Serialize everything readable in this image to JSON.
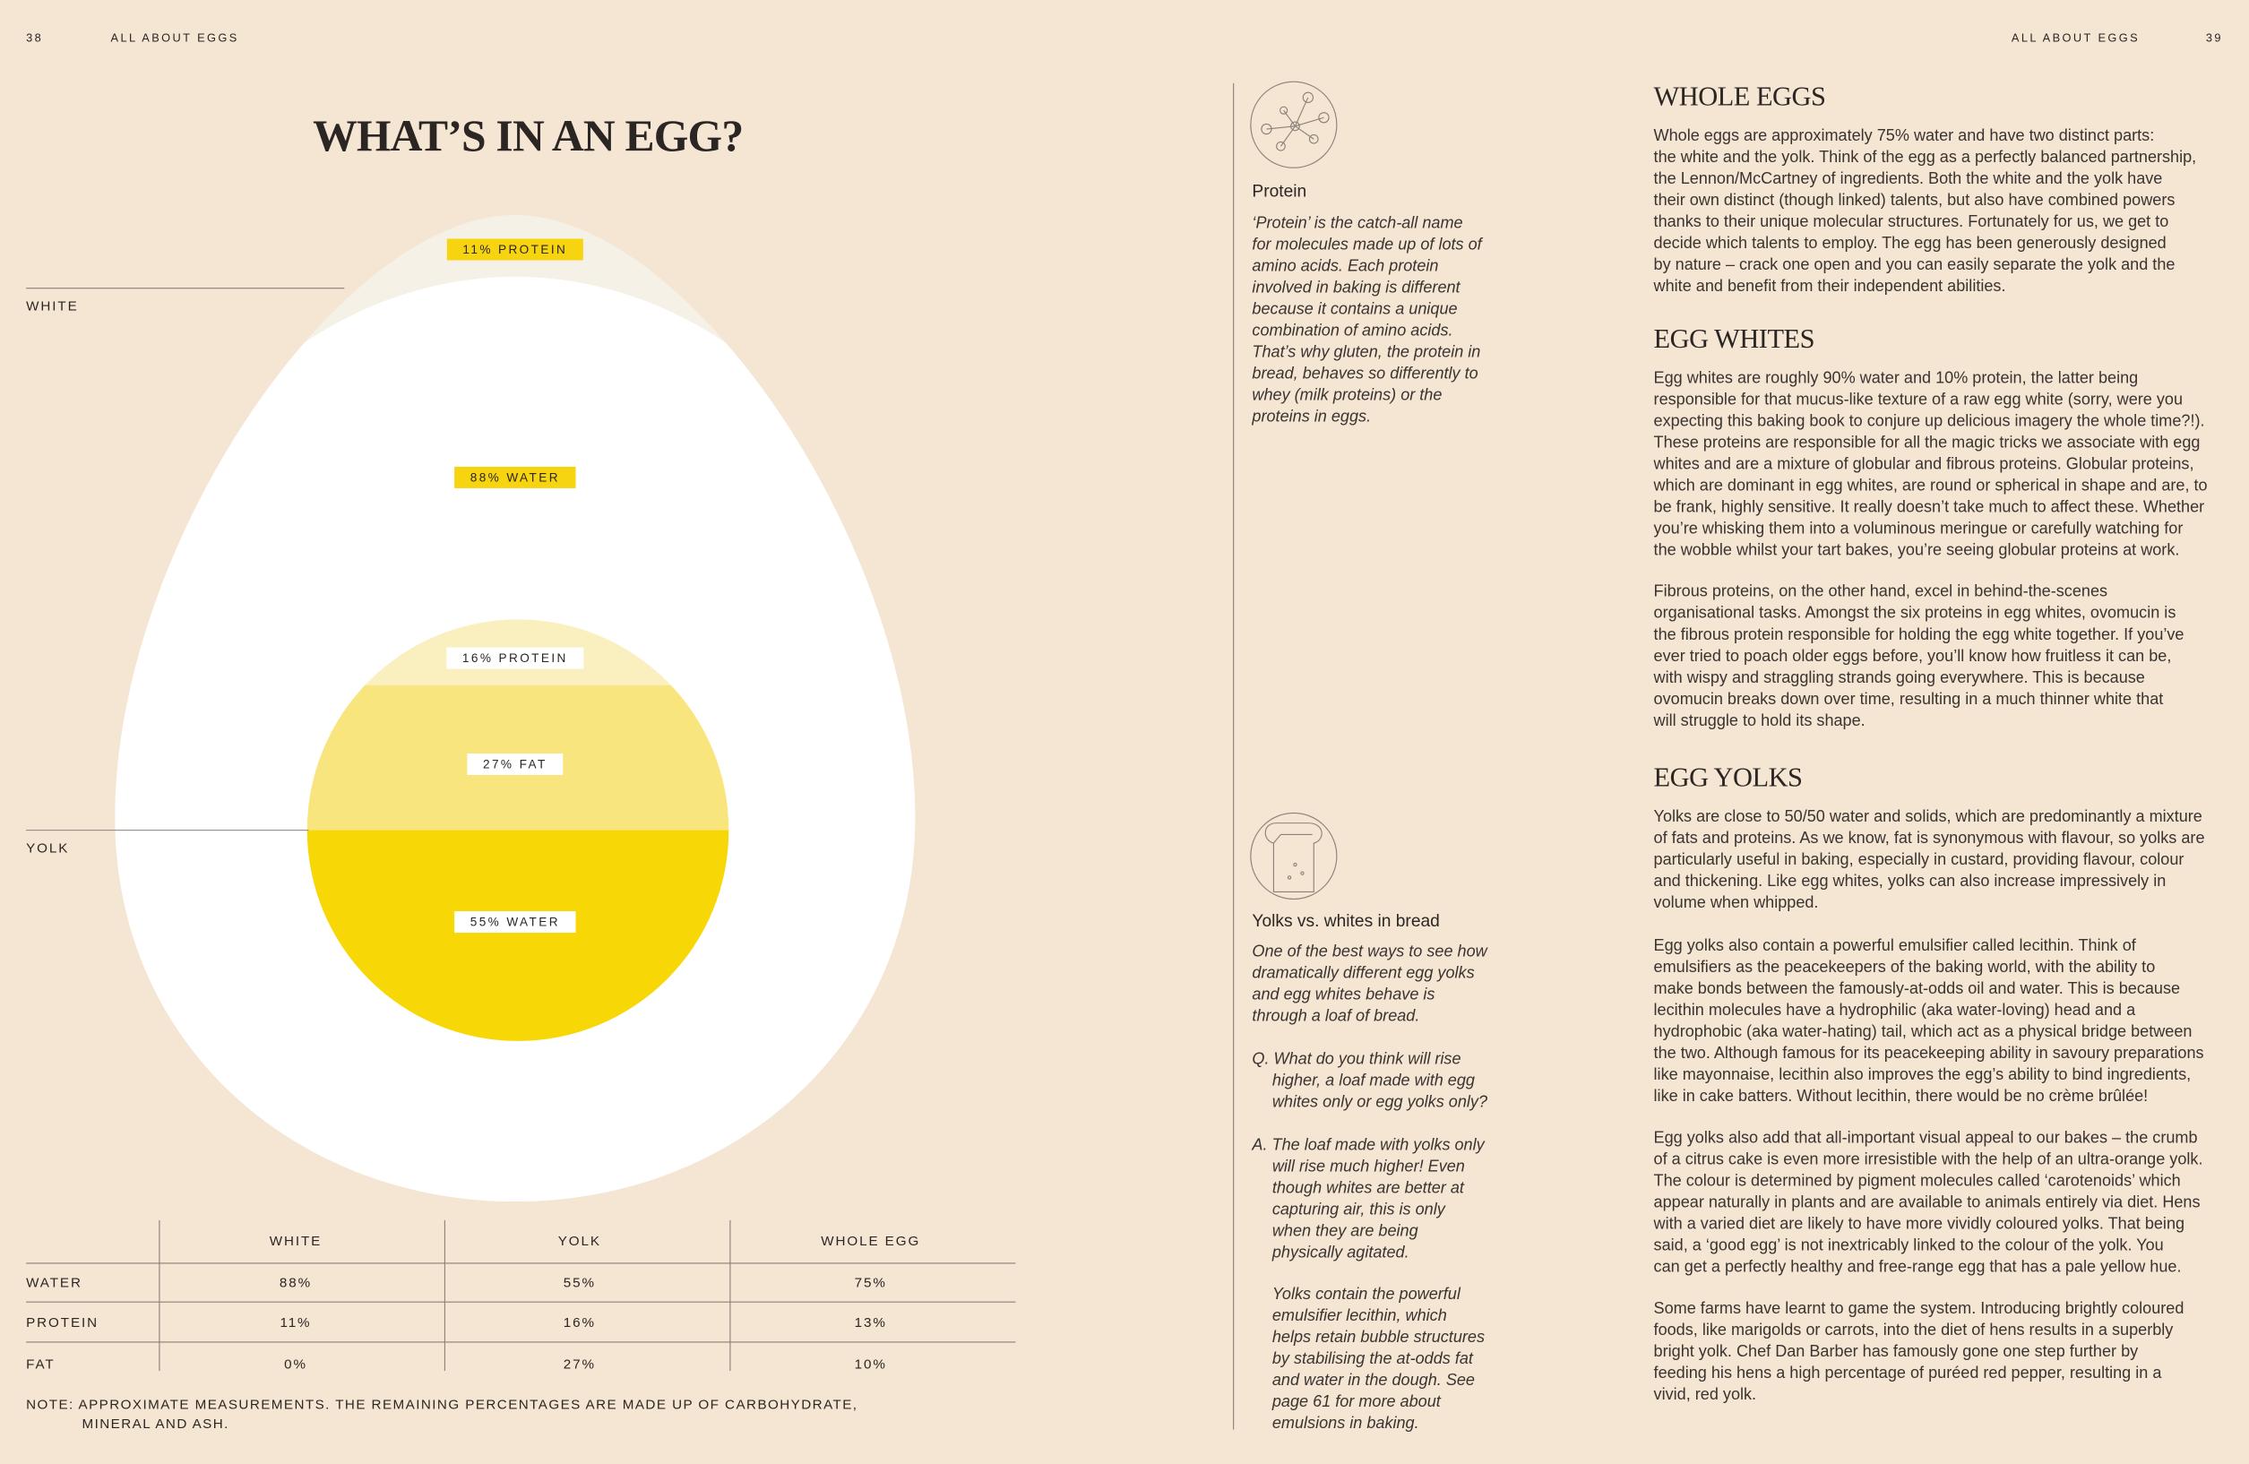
{
  "header": {
    "left": {
      "page": "38",
      "running": "ALL ABOUT EGGS"
    },
    "right": {
      "running": "ALL ABOUT EGGS",
      "page": "39"
    }
  },
  "diagram": {
    "title": "WHAT’S IN AN EGG?",
    "side_labels": [
      "WHITE",
      "YOLK"
    ],
    "white_labels": [
      "11% PROTEIN",
      "88% WATER"
    ],
    "yolk_labels": [
      "16% PROTEIN",
      "27% FAT",
      "55% WATER"
    ]
  },
  "table": {
    "columns": [
      "WHITE",
      "YOLK",
      "WHOLE EGG"
    ],
    "rows": [
      {
        "label": "WATER",
        "cells": [
          "88%",
          "55%",
          "75%"
        ]
      },
      {
        "label": "PROTEIN",
        "cells": [
          "11%",
          "16%",
          "13%"
        ]
      },
      {
        "label": "FAT",
        "cells": [
          "0%",
          "27%",
          "10%"
        ]
      }
    ]
  },
  "note": {
    "lines": [
      "NOTE: APPROXIMATE MEASUREMENTS. THE REMAINING PERCENTAGES ARE MADE UP OF CARBOHYDRATE,",
      "MINERAL AND ASH."
    ]
  },
  "sidebar": [
    {
      "title": "Protein",
      "paragraphs": [
        {
          "lines": [
            "‘Protein’ is the catch-all name",
            "for molecules made up of lots of",
            "amino acids. Each protein",
            "involved in baking is different",
            "because it contains a unique",
            "combination of amino acids.",
            "That’s why gluten, the protein in",
            "bread, behaves so differently to",
            "whey (milk proteins) or the",
            "proteins in eggs."
          ]
        }
      ]
    },
    {
      "title": "Yolks vs. whites in bread",
      "paragraphs": [
        {
          "lines": [
            "One of the best ways to see how",
            "dramatically different egg yolks",
            "and egg whites behave is",
            "through a loaf of bread."
          ]
        },
        {
          "lines": [
            "Q. What do you think will rise",
            "higher, a loaf made with egg",
            "whites only or egg yolks only?"
          ]
        },
        {
          "lines": [
            "A. The loaf made with yolks only",
            "will rise much higher! Even",
            "though whites are better at",
            "capturing air, this is only",
            "when they are being",
            "physically agitated."
          ]
        },
        {
          "lines": [
            "Yolks contain the powerful",
            "emulsifier lecithin, which",
            "helps retain bubble structures",
            "by stabilising the at-odds fat",
            "and water in the dough. See",
            "page 61 for more about",
            "emulsions in baking."
          ]
        }
      ]
    }
  ],
  "article": {
    "sections": [
      {
        "heading": "WHOLE EGGS",
        "paragraphs": [
          {
            "lines": [
              "Whole eggs are approximately 75% water and have two distinct parts:",
              "the white and the yolk. Think of the egg as a perfectly balanced partnership,",
              "the Lennon/McCartney of ingredients. Both the white and the yolk have",
              "their own distinct (though linked) talents, but also have combined powers",
              "thanks to their unique molecular structures. Fortunately for us, we get to",
              "decide which talents to employ. The egg has been generously designed",
              "by nature – crack one open and you can easily separate the yolk and the",
              "white and benefit from their independent abilities."
            ]
          }
        ]
      },
      {
        "heading": "EGG WHITES",
        "paragraphs": [
          {
            "lines": [
              "Egg whites are roughly 90% water and 10% protein, the latter being",
              "responsible for that mucus-like texture of a raw egg white (sorry, were you",
              "expecting this baking book to conjure up delicious imagery the whole time?!).",
              "These proteins are responsible for all the magic tricks we associate with egg",
              "whites and are a mixture of globular and fibrous proteins. Globular proteins,",
              "which are dominant in egg whites, are round or spherical in shape and are, to",
              "be frank, highly sensitive. It really doesn’t take much to affect these. Whether",
              "you’re whisking them into a voluminous meringue or carefully watching for",
              "the wobble whilst your tart bakes, you’re seeing globular proteins at work."
            ]
          },
          {
            "lines": [
              "Fibrous proteins, on the other hand, excel in behind-the-scenes",
              "organisational tasks. Amongst the six proteins in egg whites, ovomucin is",
              "the fibrous protein responsible for holding the egg white together. If you’ve",
              "ever tried to poach older eggs before, you’ll know how fruitless it can be,",
              "with wispy and straggling strands going everywhere. This is because",
              "ovomucin breaks down over time, resulting in a much thinner white that",
              "will struggle to hold its shape."
            ]
          }
        ]
      },
      {
        "heading": "EGG YOLKS",
        "paragraphs": [
          {
            "lines": [
              "Yolks are close to 50/50 water and solids, which are predominantly a mixture",
              "of fats and proteins. As we know, fat is synonymous with flavour, so yolks are",
              "particularly useful in baking, especially in custard, providing flavour, colour",
              "and thickening. Like egg whites, yolks can also increase impressively in",
              "volume when whipped."
            ]
          },
          {
            "lines": [
              "Egg yolks also contain a powerful emulsifier called lecithin. Think of",
              "emulsifiers as the peacekeepers of the baking world, with the ability to",
              "make bonds between the famously-at-odds oil and water. This is because",
              "lecithin molecules have a hydrophilic (aka water-loving) head and a",
              "hydrophobic (aka water-hating) tail, which act as a physical bridge between",
              "the two. Although famous for its peacekeeping ability in savoury preparations",
              "like mayonnaise, lecithin also improves the egg’s ability to bind ingredients,",
              "like in cake batters. Without lecithin, there would be no crème brûlée!"
            ]
          },
          {
            "lines": [
              "Egg yolks also add that all-important visual appeal to our bakes – the crumb",
              "of a citrus cake is even more irresistible with the help of an ultra-orange yolk.",
              "The colour is determined by pigment molecules called ‘carotenoids’ which",
              "appear naturally in plants and are available to animals entirely via diet. Hens",
              "with a varied diet are likely to have more vividly coloured yolks. That being",
              "said, a ‘good egg’ is not inextricably linked to the colour of the yolk. You",
              "can get a perfectly healthy and free-range egg that has a pale yellow hue."
            ]
          },
          {
            "lines": [
              "Some farms have learnt to game the system. Introducing brightly coloured",
              "foods, like marigolds or carrots, into the diet of hens results in a superbly",
              "bright yolk. Chef Dan Barber has famously gone one step further by",
              "feeding his hens a high percentage of puréed red pepper, resulting in a",
              "vivid, red yolk."
            ]
          }
        ]
      }
    ]
  }
}
